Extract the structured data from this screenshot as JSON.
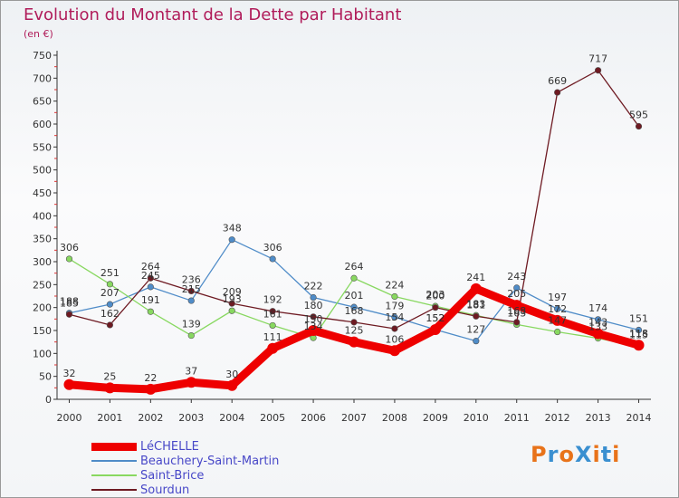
{
  "title": "Evolution du Montant de la Dette par Habitant",
  "unit": "(en €)",
  "logo": {
    "text": "ProXiti",
    "colors": [
      "#e8731a",
      "#3a8fd0",
      "#e8731a",
      "#3a8fd0",
      "#e8731a",
      "#3a8fd0",
      "#e8731a"
    ]
  },
  "chart_data": {
    "type": "line",
    "title": "Evolution du Montant de la Dette par Habitant",
    "ylabel": "(en €)",
    "xlabel": "",
    "x": [
      "2000",
      "2001",
      "2002",
      "2003",
      "2004",
      "2005",
      "2006",
      "2007",
      "2008",
      "2009",
      "2010",
      "2011",
      "2012",
      "2013",
      "2014"
    ],
    "y_ticks": [
      0,
      50,
      100,
      150,
      200,
      250,
      300,
      350,
      400,
      450,
      500,
      550,
      600,
      650,
      700,
      750
    ],
    "ylim": [
      0,
      750
    ],
    "grid": false,
    "legend_position": "bottom",
    "series": [
      {
        "name": "LéCHELLE",
        "color": "#ee0000",
        "values": [
          32,
          25,
          22,
          37,
          30,
          111,
          150,
          125,
          106,
          152,
          241,
          205,
          172,
          143,
          118
        ]
      },
      {
        "name": "Beauchery-Saint-Martin",
        "color": "#4f8cc8",
        "values": [
          188,
          207,
          245,
          215,
          348,
          306,
          222,
          201,
          179,
          152,
          127,
          243,
          197,
          174,
          151
        ]
      },
      {
        "name": "Saint-Brice",
        "color": "#88d860",
        "values": [
          306,
          251,
          191,
          139,
          193,
          161,
          134,
          264,
          224,
          203,
          183,
          163,
          147,
          133,
          115
        ]
      },
      {
        "name": "Sourdun",
        "color": "#6e1a22",
        "values": [
          185,
          162,
          264,
          236,
          209,
          192,
          180,
          168,
          154,
          200,
          181,
          168,
          669,
          717,
          595
        ]
      }
    ]
  }
}
